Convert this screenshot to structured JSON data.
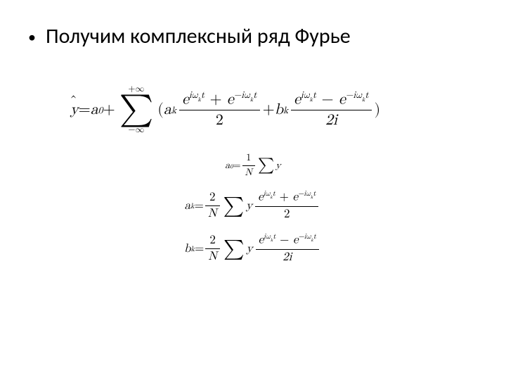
{
  "slide": {
    "bullet": {
      "marker": "•",
      "text": "Получим комплексный ряд Фурье"
    }
  },
  "math": {
    "main": {
      "lhs_y": "y",
      "eq": " = ",
      "a0": "a",
      "a0_sub": "0",
      "plus": " + ",
      "sum_top": "+∞",
      "sum_bot": "−∞",
      "open": "(",
      "ak": "a",
      "ak_sub": "k",
      "frac1_num_a": "e",
      "frac1_num_a_sup": "iω",
      "frac1_num_a_sup2": "k",
      "frac1_num_a_sup3": "t",
      "frac1_num_mid": " + ",
      "frac1_num_b": "e",
      "frac1_num_b_sup": "−iω",
      "frac1_den": "2",
      "mid_plus": " + ",
      "bk": "b",
      "bk_sub": "k",
      "frac2_num_mid": " − ",
      "frac2_den": "2i",
      "close": ")"
    },
    "a0eq": {
      "lhs": "a",
      "lhs_sub": "0",
      "eq": " = ",
      "one": "1",
      "N": "N",
      "y": "y"
    },
    "akeq": {
      "lhs": "a",
      "lhs_sub": "k",
      "eq": " = ",
      "two": "2",
      "N": "N",
      "y": "y",
      "num_mid": " + ",
      "den": "2"
    },
    "bkeq": {
      "lhs": "b",
      "lhs_sub": "k",
      "eq": " = ",
      "two": "2",
      "N": "N",
      "y": "y",
      "num_mid": " − ",
      "den": "2i"
    },
    "exp": {
      "e": "e",
      "p_sup1": "iω",
      "p_sup2": "k",
      "p_sup3": "t",
      "n_sup1": "−iω"
    }
  }
}
